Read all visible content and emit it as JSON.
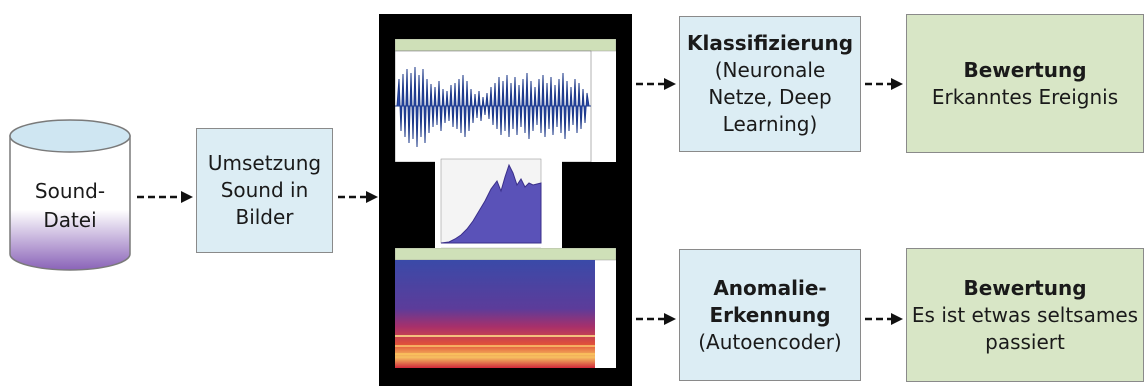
{
  "sound_file": {
    "line1": "Sound-",
    "line2": "Datei"
  },
  "conversion": {
    "line1": "Umsetzung",
    "line2": "Sound in",
    "line3": "Bilder"
  },
  "classification": {
    "title": "Klassifizierung",
    "line1": "(Neuronale",
    "line2": "Netze, Deep",
    "line3": "Learning)"
  },
  "anomaly": {
    "title1": "Anomalie-",
    "title2": "Erkennung",
    "line1": "(Autoencoder)"
  },
  "evaluation_top": {
    "title": "Bewertung",
    "text": "Erkanntes Ereignis"
  },
  "evaluation_bottom": {
    "title": "Bewertung",
    "line1": "Es ist etwas seltsames",
    "line2": "passiert"
  },
  "colors": {
    "blue_box": "#dcedf4",
    "green_box": "#d8e6c6",
    "border": "#8a8a8a",
    "panel": "#000000"
  }
}
